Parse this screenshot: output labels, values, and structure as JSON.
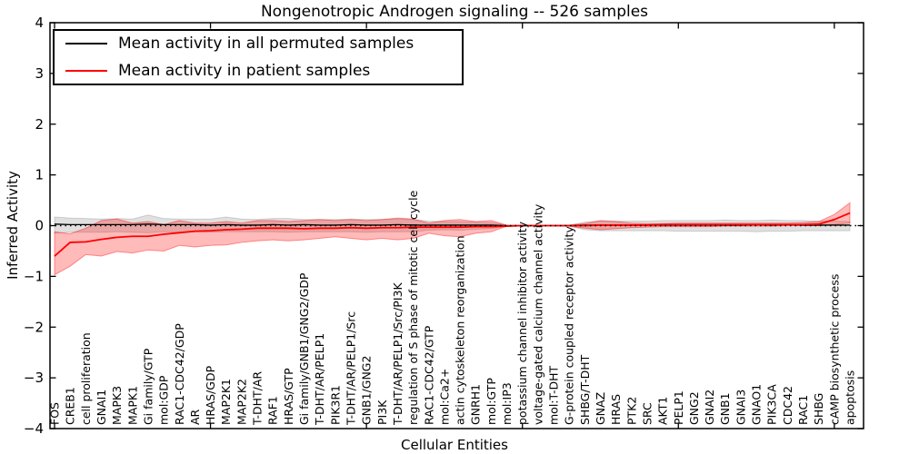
{
  "chart_data": {
    "type": "line",
    "title": "Nongenotropic Androgen signaling -- 526 samples",
    "xlabel": "Cellular Entities",
    "ylabel": "Inferred Activity",
    "ylim": [
      -4,
      4
    ],
    "ytick_labels": [
      "4",
      "3",
      "2",
      "1",
      "0",
      "−1",
      "−2",
      "−3",
      "−4"
    ],
    "grid": false,
    "zero_line": "dotted",
    "legend_position": "upper left",
    "x_major_tick_every": 10,
    "categories": [
      "FOS",
      "CREB1",
      "cell proliferation",
      "GNAI1",
      "MAPK3",
      "MAPK1",
      "Gi family/GTP",
      "mol:GDP",
      "RAC1-CDC42/GDP",
      "AR",
      "HRAS/GDP",
      "MAP2K1",
      "MAP2K2",
      "T-DHT/AR",
      "RAF1",
      "HRAS/GTP",
      "Gi family/GNB1/GNG2/GDP",
      "T-DHT/AR/PELP1",
      "PIK3R1",
      "T-DHT/AR/PELP1/Src",
      "GNB1/GNG2",
      "PI3K",
      "T-DHT/AR/PELP1/Src/PI3K",
      "regulation of S phase of mitotic cell cycle",
      "RAC1-CDC42/GTP",
      "mol:Ca2+",
      "actin cytoskeleton reorganization",
      "GNRH1",
      "mol:GTP",
      "mol:IP3",
      "potassium channel inhibitor activity",
      "voltage-gated calcium channel activity",
      "mol:T-DHT",
      "G-protein coupled receptor activity",
      "SHBG/T-DHT",
      "GNAZ",
      "HRAS",
      "PTK2",
      "SRC",
      "AKT1",
      "PELP1",
      "GNG2",
      "GNAI2",
      "GNB1",
      "GNAI3",
      "GNAO1",
      "PIK3CA",
      "CDC42",
      "RAC1",
      "SHBG",
      "cAMP biosynthetic process",
      "apoptosis"
    ],
    "series": [
      {
        "name": "Mean activity in all permuted samples",
        "line_color": "#000000",
        "line_width": 1.3,
        "band_fill": "rgba(0,0,0,0.12)",
        "band_edge": "rgba(0,0,0,0.15)",
        "values": [
          0.03,
          0.02,
          0.02,
          0.02,
          0.02,
          0.02,
          0.03,
          0.02,
          0.02,
          0.02,
          0.01,
          0.02,
          0.01,
          0.01,
          0.02,
          0.01,
          0.02,
          0.01,
          0.01,
          0.02,
          0.01,
          0.01,
          0.02,
          0.01,
          0.01,
          0.01,
          0.01,
          0.01,
          0.01,
          0,
          0,
          0,
          0,
          0,
          0.01,
          0.01,
          0.01,
          0.01,
          0.01,
          0.01,
          0.01,
          0.01,
          0.01,
          0.01,
          0.01,
          0.02,
          0.01,
          0.02,
          0.01,
          0.01,
          0.01,
          0.01
        ],
        "band_upper": [
          0.17,
          0.15,
          0.14,
          0.13,
          0.14,
          0.13,
          0.21,
          0.14,
          0.13,
          0.13,
          0.13,
          0.17,
          0.13,
          0.12,
          0.14,
          0.14,
          0.12,
          0.12,
          0.12,
          0.13,
          0.12,
          0.12,
          0.13,
          0.12,
          0.09,
          0.08,
          0.08,
          0.07,
          0.06,
          0.01,
          0,
          0,
          0,
          0.01,
          0.07,
          0.09,
          0.09,
          0.09,
          0.09,
          0.1,
          0.1,
          0.1,
          0.1,
          0.11,
          0.1,
          0.1,
          0.11,
          0.1,
          0.1,
          0.09,
          0.09,
          0.08
        ],
        "band_lower": [
          -0.15,
          -0.13,
          -0.13,
          -0.13,
          -0.12,
          -0.13,
          -0.14,
          -0.12,
          -0.13,
          -0.12,
          -0.13,
          -0.12,
          -0.12,
          -0.12,
          -0.12,
          -0.13,
          -0.12,
          -0.12,
          -0.12,
          -0.12,
          -0.13,
          -0.12,
          -0.12,
          -0.12,
          -0.09,
          -0.08,
          -0.09,
          -0.07,
          -0.06,
          -0.01,
          0,
          0,
          0,
          -0.01,
          -0.08,
          -0.1,
          -0.1,
          -0.1,
          -0.1,
          -0.1,
          -0.11,
          -0.11,
          -0.11,
          -0.11,
          -0.11,
          -0.12,
          -0.11,
          -0.11,
          -0.1,
          -0.1,
          -0.1,
          -0.1
        ]
      },
      {
        "name": "Mean activity in patient samples",
        "line_color": "#ff0000",
        "line_width": 1.8,
        "band_fill": "rgba(255,0,0,0.27)",
        "band_edge": "rgba(255,0,0,0.4)",
        "values": [
          -0.6,
          -0.33,
          -0.32,
          -0.27,
          -0.23,
          -0.21,
          -0.21,
          -0.17,
          -0.14,
          -0.11,
          -0.1,
          -0.08,
          -0.07,
          -0.05,
          -0.05,
          -0.05,
          -0.06,
          -0.05,
          -0.05,
          -0.04,
          -0.05,
          -0.04,
          -0.04,
          -0.03,
          -0.03,
          -0.03,
          -0.03,
          -0.02,
          -0.02,
          -0.01,
          0,
          0,
          0,
          0,
          0,
          0.01,
          0.01,
          0.01,
          0.01,
          0.02,
          0.02,
          0.02,
          0.02,
          0.02,
          0.02,
          0.02,
          0.02,
          0.02,
          0.02,
          0.03,
          0.12,
          0.25
        ],
        "band_upper": [
          -0.12,
          -0.16,
          -0.05,
          0.1,
          0.13,
          0.05,
          0.08,
          0.02,
          0.1,
          0.05,
          0.05,
          0.08,
          0.05,
          0.1,
          0.1,
          0.08,
          0.1,
          0.12,
          0.1,
          0.12,
          0.1,
          0.12,
          0.15,
          0.13,
          0.05,
          0.1,
          0.12,
          0.08,
          0.1,
          0.01,
          0,
          0,
          0,
          0.01,
          0.04,
          0.1,
          0.08,
          0.05,
          0.04,
          0.04,
          0.05,
          0.05,
          0.05,
          0.05,
          0.05,
          0.05,
          0.05,
          0.05,
          0.06,
          0.08,
          0.22,
          0.45
        ],
        "band_lower": [
          -0.97,
          -0.8,
          -0.57,
          -0.6,
          -0.51,
          -0.54,
          -0.48,
          -0.5,
          -0.39,
          -0.42,
          -0.39,
          -0.38,
          -0.33,
          -0.3,
          -0.28,
          -0.3,
          -0.28,
          -0.25,
          -0.22,
          -0.25,
          -0.28,
          -0.25,
          -0.28,
          -0.25,
          -0.15,
          -0.2,
          -0.22,
          -0.15,
          -0.12,
          -0.01,
          0,
          0,
          0,
          -0.01,
          -0.05,
          -0.08,
          -0.06,
          -0.04,
          -0.03,
          -0.02,
          -0.02,
          -0.02,
          -0.02,
          -0.01,
          -0.01,
          -0.01,
          -0.01,
          0,
          0,
          0,
          0.02,
          0.05
        ]
      }
    ]
  }
}
